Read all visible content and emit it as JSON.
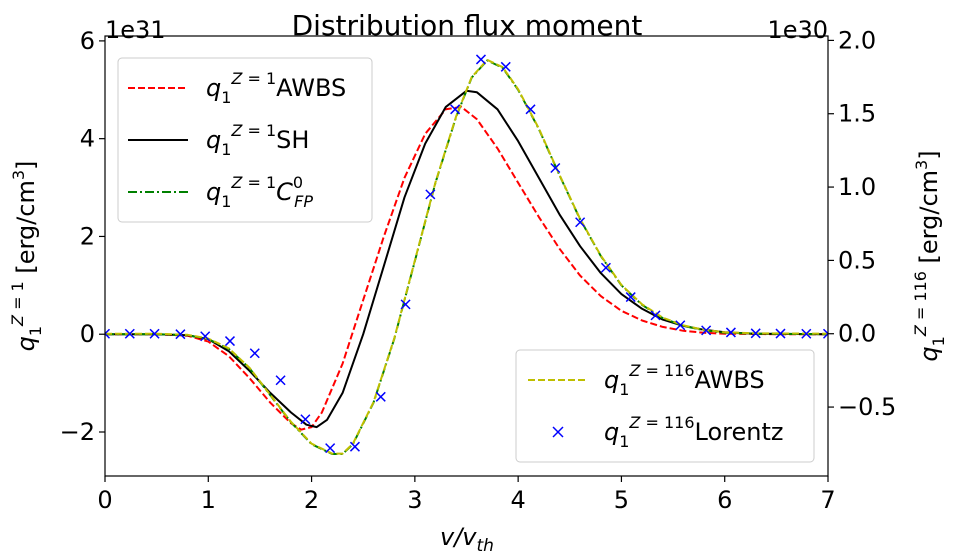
{
  "chart_data": {
    "type": "line",
    "title": "Distribution flux moment",
    "xlabel": "v/v_th",
    "ylabel_left": "q_1^{Z=1} [erg/cm^3]",
    "ylabel_right": "q_1^{Z=116} [erg/cm^3]",
    "left_offset_text": "1e31",
    "right_offset_text": "1e30",
    "xlim": [
      0,
      7
    ],
    "ylim_left": [
      -2.9,
      6.1
    ],
    "ylim_right": [
      -0.97,
      2.03
    ],
    "x_ticks": [
      "0",
      "1",
      "2",
      "3",
      "4",
      "5",
      "6",
      "7"
    ],
    "y_ticks_left": [
      "−2",
      "0",
      "2",
      "4",
      "6"
    ],
    "y_ticks_right": [
      "−0.5",
      "0.0",
      "0.5",
      "1.0",
      "1.5",
      "2.0"
    ],
    "grid": false,
    "legend_left": {
      "placement": "upper-left",
      "entries": [
        {
          "label": "q_1^{Z=1}AWBS",
          "color": "#ff0000",
          "style": "dashed"
        },
        {
          "label": "q_1^{Z=1}SH",
          "color": "#000000",
          "style": "solid"
        },
        {
          "label": "q_1^{Z=1}C_FP^0",
          "color": "#008000",
          "style": "dashdot"
        }
      ]
    },
    "legend_right": {
      "placement": "lower-right",
      "entries": [
        {
          "label": "q_1^{Z=116}AWBS",
          "color": "#bfbf00",
          "style": "dashed"
        },
        {
          "label": "q_1^{Z=116}Lorentz",
          "color": "#0000ff",
          "style": "x-marker"
        }
      ]
    },
    "series": [
      {
        "name": "q_1^{Z=1}AWBS",
        "axis": "left",
        "color": "#ff0000",
        "style": "dashed",
        "points": [
          [
            0,
            0
          ],
          [
            0.5,
            0
          ],
          [
            0.8,
            -0.03
          ],
          [
            1.0,
            -0.15
          ],
          [
            1.2,
            -0.45
          ],
          [
            1.4,
            -0.9
          ],
          [
            1.6,
            -1.4
          ],
          [
            1.8,
            -1.82
          ],
          [
            1.9,
            -1.95
          ],
          [
            2.0,
            -1.9
          ],
          [
            2.1,
            -1.6
          ],
          [
            2.3,
            -0.6
          ],
          [
            2.5,
            0.7
          ],
          [
            2.7,
            2.0
          ],
          [
            2.9,
            3.2
          ],
          [
            3.1,
            4.1
          ],
          [
            3.3,
            4.6
          ],
          [
            3.45,
            4.65
          ],
          [
            3.6,
            4.4
          ],
          [
            3.8,
            3.8
          ],
          [
            4.0,
            3.1
          ],
          [
            4.2,
            2.4
          ],
          [
            4.4,
            1.75
          ],
          [
            4.6,
            1.2
          ],
          [
            4.8,
            0.78
          ],
          [
            5.0,
            0.48
          ],
          [
            5.2,
            0.28
          ],
          [
            5.4,
            0.15
          ],
          [
            5.6,
            0.07
          ],
          [
            5.8,
            0.03
          ],
          [
            6.0,
            0.01
          ],
          [
            6.5,
            0
          ],
          [
            7.0,
            0
          ]
        ]
      },
      {
        "name": "q_1^{Z=1}SH",
        "axis": "left",
        "color": "#000000",
        "style": "solid",
        "points": [
          [
            0,
            0
          ],
          [
            0.5,
            0
          ],
          [
            0.8,
            -0.02
          ],
          [
            1.0,
            -0.1
          ],
          [
            1.2,
            -0.35
          ],
          [
            1.4,
            -0.75
          ],
          [
            1.6,
            -1.2
          ],
          [
            1.8,
            -1.6
          ],
          [
            1.95,
            -1.85
          ],
          [
            2.05,
            -1.9
          ],
          [
            2.15,
            -1.75
          ],
          [
            2.3,
            -1.2
          ],
          [
            2.5,
            0.0
          ],
          [
            2.7,
            1.4
          ],
          [
            2.9,
            2.8
          ],
          [
            3.1,
            3.9
          ],
          [
            3.3,
            4.65
          ],
          [
            3.5,
            4.98
          ],
          [
            3.6,
            4.95
          ],
          [
            3.8,
            4.6
          ],
          [
            4.0,
            3.95
          ],
          [
            4.2,
            3.2
          ],
          [
            4.4,
            2.45
          ],
          [
            4.6,
            1.8
          ],
          [
            4.8,
            1.25
          ],
          [
            5.0,
            0.82
          ],
          [
            5.2,
            0.52
          ],
          [
            5.4,
            0.3
          ],
          [
            5.6,
            0.17
          ],
          [
            5.8,
            0.09
          ],
          [
            6.0,
            0.04
          ],
          [
            6.3,
            0.01
          ],
          [
            7.0,
            0
          ]
        ]
      },
      {
        "name": "q_1^{Z=1}C_FP^0",
        "axis": "left",
        "color": "#008000",
        "style": "dashdot",
        "points": [
          [
            0,
            0
          ],
          [
            0.5,
            0
          ],
          [
            0.8,
            -0.02
          ],
          [
            1.0,
            -0.1
          ],
          [
            1.2,
            -0.3
          ],
          [
            1.4,
            -0.7
          ],
          [
            1.6,
            -1.25
          ],
          [
            1.8,
            -1.8
          ],
          [
            2.0,
            -2.25
          ],
          [
            2.2,
            -2.45
          ],
          [
            2.3,
            -2.45
          ],
          [
            2.4,
            -2.25
          ],
          [
            2.6,
            -1.4
          ],
          [
            2.8,
            -0.1
          ],
          [
            3.0,
            1.5
          ],
          [
            3.2,
            3.1
          ],
          [
            3.4,
            4.45
          ],
          [
            3.55,
            5.25
          ],
          [
            3.7,
            5.6
          ],
          [
            3.85,
            5.45
          ],
          [
            4.0,
            5.0
          ],
          [
            4.2,
            4.2
          ],
          [
            4.4,
            3.25
          ],
          [
            4.6,
            2.35
          ],
          [
            4.8,
            1.6
          ],
          [
            5.0,
            1.0
          ],
          [
            5.2,
            0.6
          ],
          [
            5.4,
            0.33
          ],
          [
            5.6,
            0.17
          ],
          [
            5.8,
            0.08
          ],
          [
            6.0,
            0.03
          ],
          [
            6.3,
            0.01
          ],
          [
            7.0,
            0
          ]
        ]
      },
      {
        "name": "q_1^{Z=116}AWBS",
        "axis": "right",
        "color": "#bfbf00",
        "style": "dashed",
        "points": [
          [
            0,
            0
          ],
          [
            0.5,
            0
          ],
          [
            0.8,
            -0.007
          ],
          [
            1.0,
            -0.033
          ],
          [
            1.2,
            -0.1
          ],
          [
            1.4,
            -0.233
          ],
          [
            1.6,
            -0.417
          ],
          [
            1.8,
            -0.6
          ],
          [
            2.0,
            -0.75
          ],
          [
            2.2,
            -0.817
          ],
          [
            2.3,
            -0.817
          ],
          [
            2.4,
            -0.75
          ],
          [
            2.6,
            -0.467
          ],
          [
            2.8,
            -0.033
          ],
          [
            3.0,
            0.5
          ],
          [
            3.2,
            1.033
          ],
          [
            3.4,
            1.483
          ],
          [
            3.55,
            1.75
          ],
          [
            3.7,
            1.867
          ],
          [
            3.85,
            1.817
          ],
          [
            4.0,
            1.667
          ],
          [
            4.2,
            1.4
          ],
          [
            4.4,
            1.083
          ],
          [
            4.6,
            0.783
          ],
          [
            4.8,
            0.533
          ],
          [
            5.0,
            0.333
          ],
          [
            5.2,
            0.2
          ],
          [
            5.4,
            0.11
          ],
          [
            5.6,
            0.057
          ],
          [
            5.8,
            0.027
          ],
          [
            6.0,
            0.01
          ],
          [
            6.3,
            0.003
          ],
          [
            7.0,
            0
          ]
        ]
      },
      {
        "name": "q_1^{Z=116}Lorentz",
        "axis": "right",
        "color": "#0000ff",
        "style": "x-marker",
        "points": [
          [
            0.0,
            0
          ],
          [
            0.24,
            0
          ],
          [
            0.48,
            0
          ],
          [
            0.73,
            -0.003
          ],
          [
            0.97,
            -0.017
          ],
          [
            1.21,
            -0.05
          ],
          [
            1.45,
            -0.133
          ],
          [
            1.7,
            -0.317
          ],
          [
            1.94,
            -0.583
          ],
          [
            2.18,
            -0.78
          ],
          [
            2.42,
            -0.77
          ],
          [
            2.67,
            -0.43
          ],
          [
            2.91,
            0.2
          ],
          [
            3.15,
            0.95
          ],
          [
            3.39,
            1.53
          ],
          [
            3.64,
            1.87
          ],
          [
            3.88,
            1.82
          ],
          [
            4.12,
            1.53
          ],
          [
            4.36,
            1.13
          ],
          [
            4.6,
            0.76
          ],
          [
            4.85,
            0.45
          ],
          [
            5.09,
            0.25
          ],
          [
            5.33,
            0.125
          ],
          [
            5.57,
            0.058
          ],
          [
            5.82,
            0.023
          ],
          [
            6.06,
            0.009
          ],
          [
            6.3,
            0.003
          ],
          [
            6.54,
            0.001
          ],
          [
            6.79,
            0
          ],
          [
            7.0,
            0
          ]
        ]
      }
    ]
  }
}
